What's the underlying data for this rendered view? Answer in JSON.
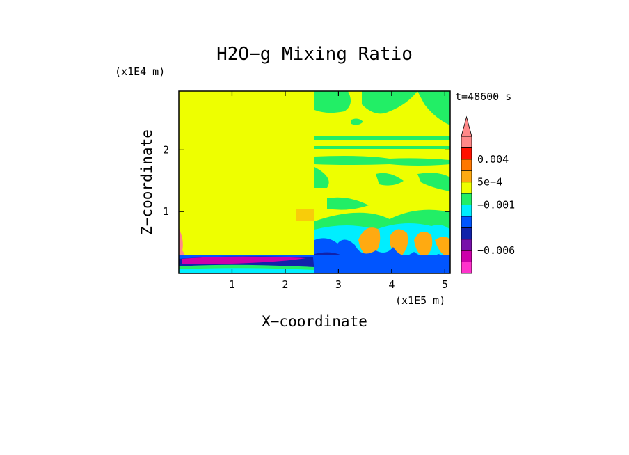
{
  "chart_data": {
    "type": "heatmap",
    "title": "H2O−g Mixing Ratio",
    "xlabel": "X−coordinate",
    "ylabel": "Z−coordinate",
    "x_scale_label": "(x1E5 m)",
    "y_scale_label": "(x1E4 m)",
    "time_label": "t=48600 s",
    "xlim": [
      0,
      5.1
    ],
    "ylim": [
      0,
      2.95
    ],
    "x_ticks": [
      {
        "value": 1,
        "label": "1"
      },
      {
        "value": 2,
        "label": "2"
      },
      {
        "value": 3,
        "label": "3"
      },
      {
        "value": 4,
        "label": "4"
      },
      {
        "value": 5,
        "label": "5"
      }
    ],
    "y_ticks": [
      {
        "value": 1,
        "label": "1"
      },
      {
        "value": 2,
        "label": "2"
      }
    ],
    "colorbar": {
      "levels": [
        "#ff33cc",
        "#cc00aa",
        "#7711aa",
        "#1122aa",
        "#0055ff",
        "#00eeff",
        "#22ee66",
        "#eeff00",
        "#ffaa11",
        "#ff7700",
        "#ff1100",
        "#ff8888"
      ],
      "labels": [
        {
          "text": "0.004",
          "index": 10
        },
        {
          "text": "5e−4",
          "index": 8
        },
        {
          "text": "−0.001",
          "index": 6
        },
        {
          "text": "−0.006",
          "index": 2
        }
      ]
    },
    "regions": [
      {
        "name": "uniform-upper-left",
        "color": "#eeff00",
        "x": [
          0,
          2.55
        ],
        "z": [
          0.3,
          2.95
        ]
      },
      {
        "name": "surface-layer",
        "color": "#1122aa",
        "x": [
          0,
          5.1
        ],
        "z": [
          0,
          0.25
        ]
      },
      {
        "name": "convective-right",
        "color": "#00eeff",
        "x": [
          2.55,
          5.1
        ],
        "z": [
          0.3,
          1.0
        ]
      }
    ],
    "colors": {
      "plot_background": "#eeff00",
      "axis": "#000000"
    }
  }
}
